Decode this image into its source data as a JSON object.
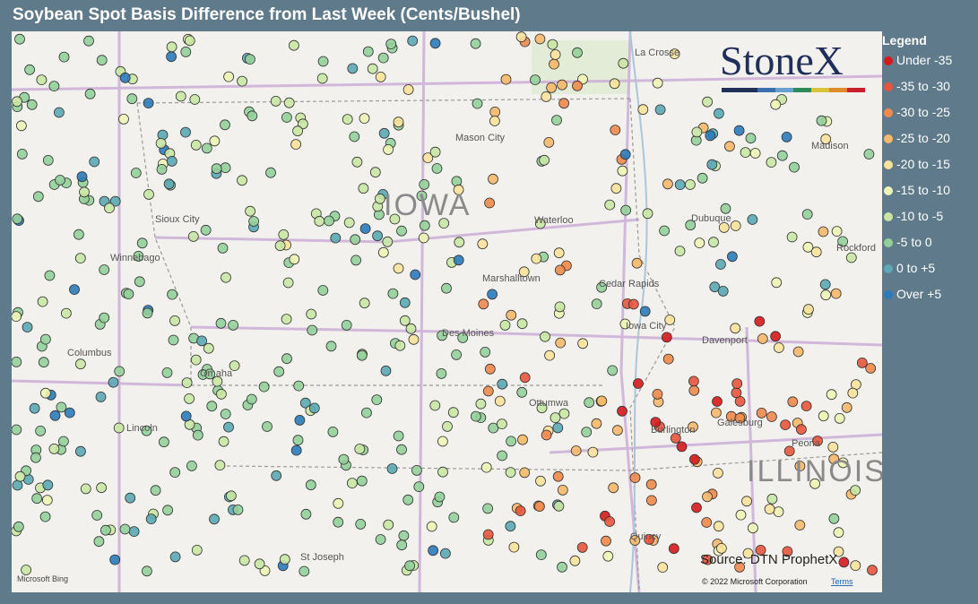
{
  "title": "Soybean Spot Basis Difference from Last Week (Cents/Bushel)",
  "legend": {
    "title": "Legend",
    "items": [
      {
        "label": "Under -35",
        "color": "#d7191c"
      },
      {
        "label": "-35 to -30",
        "color": "#e8553b"
      },
      {
        "label": "-30 to -25",
        "color": "#f08a4b"
      },
      {
        "label": "-25 to -20",
        "color": "#f6b869"
      },
      {
        "label": "-20 to -15",
        "color": "#fbe29b"
      },
      {
        "label": "-15 to -10",
        "color": "#eef5b4"
      },
      {
        "label": "-10 to -5",
        "color": "#c9e7a3"
      },
      {
        "label": "-5 to 0",
        "color": "#94d09a"
      },
      {
        "label": "0 to +5",
        "color": "#5aa9b5"
      },
      {
        "label": "Over +5",
        "color": "#2b7bba"
      }
    ]
  },
  "map": {
    "states": [
      "IOWA",
      "ILLINOIS"
    ],
    "cities": [
      "Sioux City",
      "Mason City",
      "Waterloo",
      "Dubuque",
      "Rockford",
      "Madison",
      "La Crosse",
      "Cedar Rapids",
      "Marshalltown",
      "Des Moines",
      "Davenport",
      "Iowa City",
      "Omaha",
      "Columbus",
      "Lincoln",
      "Ottumwa",
      "Burlington",
      "Galesburg",
      "Peoria",
      "Quincy",
      "St Joseph",
      "Winnebago"
    ]
  },
  "logo": "StoneX",
  "source": "Source: DTN ProphetX",
  "attribution": {
    "bing": "Microsoft Bing",
    "copyright": "© 2022 Microsoft Corporation",
    "terms": "Terms"
  }
}
